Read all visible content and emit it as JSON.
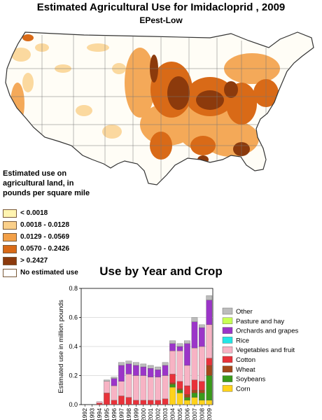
{
  "header": {
    "title": "Estimated Agricultural Use for Imidacloprid , 2009",
    "subtitle": "EPest-Low"
  },
  "map_legend": {
    "title": "Estimated use on agricultural land, in pounds per square mile",
    "items": [
      {
        "label": "< 0.0018",
        "color": "#fff4b0"
      },
      {
        "label": "0.0018 - 0.0128",
        "color": "#fbd08a"
      },
      {
        "label": "0.0129 - 0.0569",
        "color": "#f3a048"
      },
      {
        "label": "0.0570 - 0.2426",
        "color": "#d96a17"
      },
      {
        "label": "> 0.2427",
        "color": "#8c3a0c"
      },
      {
        "label": "No estimated use",
        "color": "#ffffff"
      }
    ]
  },
  "chart_data": {
    "type": "bar",
    "stacked": true,
    "title": "Use by Year and Crop",
    "xlabel": "",
    "ylabel": "Estimated use in million pounds",
    "ylim": [
      0,
      0.8
    ],
    "yticks": [
      "0.0",
      "0.2",
      "0.4",
      "0.6",
      "0.8"
    ],
    "grid": true,
    "legend_position": "right",
    "categories": [
      "1992",
      "1993",
      "1994",
      "1995",
      "1996",
      "1997",
      "1998",
      "1999",
      "2000",
      "2001",
      "2002",
      "2003",
      "2004",
      "2005",
      "2006",
      "2007",
      "2008",
      "2009"
    ],
    "series": [
      {
        "name": "Corn",
        "color": "#ffd21a",
        "values": [
          0,
          0,
          0,
          0,
          0,
          0,
          0,
          0,
          0,
          0,
          0,
          0,
          0.12,
          0.08,
          0.03,
          0.05,
          0.03,
          0.03
        ]
      },
      {
        "name": "Soybeans",
        "color": "#3a9a1a",
        "values": [
          0,
          0,
          0,
          0,
          0,
          0,
          0,
          0,
          0,
          0,
          0,
          0,
          0.02,
          0.02,
          0.02,
          0.03,
          0.05,
          0.17
        ]
      },
      {
        "name": "Wheat",
        "color": "#a4481a",
        "values": [
          0,
          0,
          0,
          0,
          0,
          0,
          0,
          0,
          0,
          0,
          0,
          0,
          0.01,
          0.01,
          0.02,
          0.02,
          0.02,
          0.07
        ]
      },
      {
        "name": "Cotton",
        "color": "#e8323a",
        "values": [
          0,
          0,
          0.01,
          0.08,
          0.03,
          0.06,
          0.05,
          0.03,
          0.03,
          0.03,
          0.03,
          0.04,
          0.06,
          0.05,
          0.06,
          0.07,
          0.06,
          0.05
        ]
      },
      {
        "name": "Vegetables and fruit",
        "color": "#f7b3c4",
        "values": [
          0,
          0,
          0.01,
          0.08,
          0.1,
          0.1,
          0.16,
          0.17,
          0.17,
          0.16,
          0.16,
          0.16,
          0.16,
          0.21,
          0.14,
          0.22,
          0.24,
          0.23
        ]
      },
      {
        "name": "Rice",
        "color": "#23e6e6",
        "values": [
          0,
          0,
          0,
          0,
          0,
          0,
          0,
          0,
          0,
          0,
          0,
          0,
          0,
          0,
          0,
          0,
          0,
          0
        ]
      },
      {
        "name": "Orchards and grapes",
        "color": "#9b35c8",
        "values": [
          0,
          0,
          0,
          0,
          0.05,
          0.11,
          0.07,
          0.07,
          0.06,
          0.06,
          0.05,
          0.07,
          0.05,
          0.03,
          0.15,
          0.18,
          0.13,
          0.17
        ]
      },
      {
        "name": "Pasture and hay",
        "color": "#c8ff55",
        "values": [
          0,
          0,
          0,
          0,
          0,
          0,
          0,
          0,
          0,
          0,
          0,
          0,
          0,
          0,
          0,
          0,
          0,
          0
        ]
      },
      {
        "name": "Other",
        "color": "#bcbcbc",
        "values": [
          0,
          0,
          0,
          0.01,
          0.01,
          0.02,
          0.02,
          0.02,
          0.02,
          0.02,
          0.02,
          0.02,
          0.02,
          0.02,
          0.02,
          0.03,
          0.02,
          0.03
        ]
      }
    ]
  }
}
